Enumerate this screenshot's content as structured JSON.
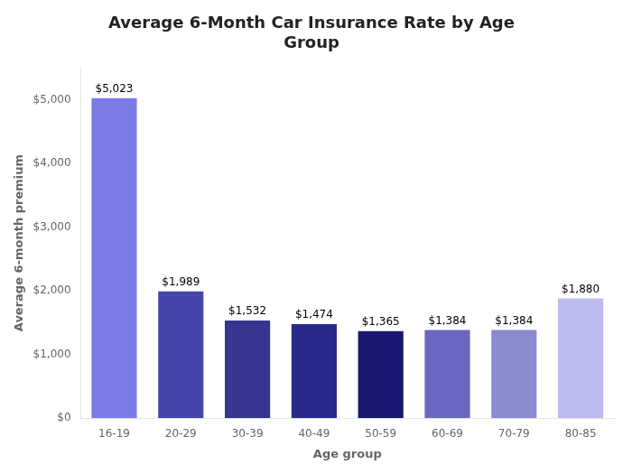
{
  "chart_data": {
    "type": "bar",
    "title": "Average 6-Month Car Insurance Rate by Age\nGroup",
    "xlabel": "Age group",
    "ylabel": "Average 6-month premium",
    "categories": [
      "16-19",
      "20-29",
      "30-39",
      "40-49",
      "50-59",
      "60-69",
      "70-79",
      "80-85"
    ],
    "values": [
      5023,
      1989,
      1532,
      1474,
      1365,
      1384,
      1384,
      1880
    ],
    "value_labels": [
      "$5,023",
      "$1,989",
      "$1,532",
      "$1,474",
      "$1,365",
      "$1,384",
      "$1,384",
      "$1,880"
    ],
    "colors": [
      "#7B7BE8",
      "#4545AA",
      "#363690",
      "#2A2A8A",
      "#181870",
      "#6868C0",
      "#8A8AD0",
      "#BBBBEE"
    ],
    "ylim": [
      0,
      5500
    ],
    "yticks": [
      {
        "value": 0,
        "label": "$0"
      },
      {
        "value": 1000,
        "label": "$1,000"
      },
      {
        "value": 2000,
        "label": "$2,000"
      },
      {
        "value": 3000,
        "label": "$3,000"
      },
      {
        "value": 4000,
        "label": "$4,000"
      },
      {
        "value": 5000,
        "label": "$5,000"
      }
    ],
    "data_labels": true,
    "grid": false
  }
}
